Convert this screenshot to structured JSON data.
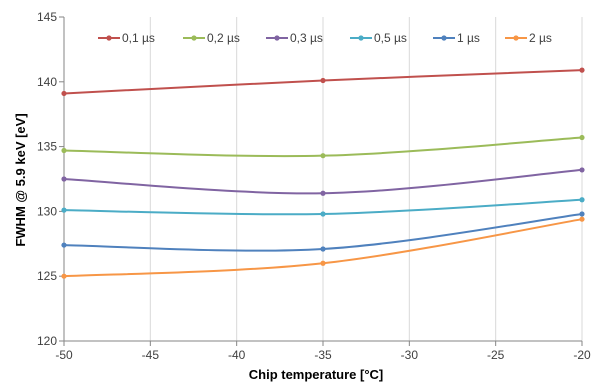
{
  "chart_data": {
    "type": "line",
    "title": "",
    "xlabel": "Chip temperature [°C]",
    "ylabel": "FWHM @ 5.9 keV [eV]",
    "x": [
      -50,
      -35,
      -20
    ],
    "xlim": [
      -50,
      -20
    ],
    "ylim": [
      120,
      145
    ],
    "xticks": [
      -50,
      -45,
      -40,
      -35,
      -30,
      -25,
      -20
    ],
    "yticks": [
      120,
      125,
      130,
      135,
      140,
      145
    ],
    "grid": "vertical",
    "legend": "top",
    "series": [
      {
        "name": "0,1 µs",
        "color": "#C0504D",
        "values": [
          139.1,
          140.1,
          140.9
        ]
      },
      {
        "name": "0,2 µs",
        "color": "#9BBB59",
        "values": [
          134.7,
          134.3,
          135.7
        ]
      },
      {
        "name": "0,3 µs",
        "color": "#8064A2",
        "values": [
          132.5,
          131.4,
          133.2
        ]
      },
      {
        "name": "0,5 µs",
        "color": "#4BACC6",
        "values": [
          130.1,
          129.8,
          130.9
        ]
      },
      {
        "name": "1 µs",
        "color": "#4F81BD",
        "values": [
          127.4,
          127.1,
          129.8
        ]
      },
      {
        "name": "2 µs",
        "color": "#F79646",
        "values": [
          125.0,
          126.0,
          129.4
        ]
      }
    ]
  }
}
